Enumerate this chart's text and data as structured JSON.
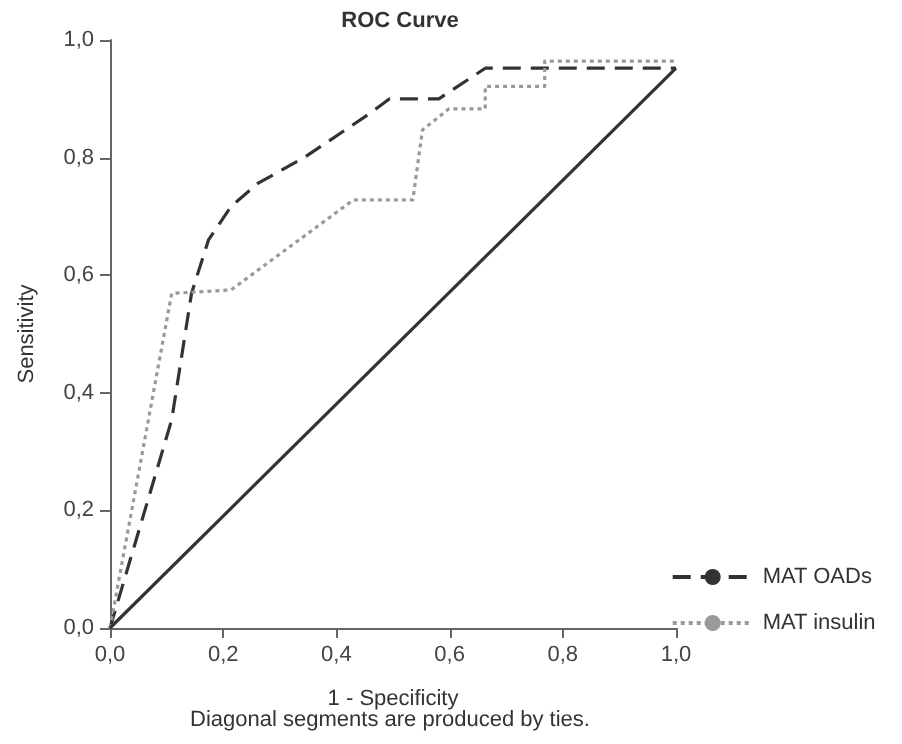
{
  "chart_data": {
    "type": "line",
    "title": "ROC Curve",
    "xlabel": "1 - Specificity",
    "ylabel": "Sensitivity",
    "annotations": [
      "Diagonal segments are produced by ties."
    ],
    "xlim": [
      0,
      1
    ],
    "ylim": [
      0,
      1
    ],
    "xticks": [
      {
        "value": 0,
        "label": "0,0"
      },
      {
        "value": 0.2,
        "label": "0,2"
      },
      {
        "value": 0.4,
        "label": "0,4"
      },
      {
        "value": 0.6,
        "label": "0,6"
      },
      {
        "value": 0.8,
        "label": "0,8"
      },
      {
        "value": 1,
        "label": "1,0"
      }
    ],
    "yticks": [
      {
        "value": 0,
        "label": "0,0"
      },
      {
        "value": 0.2,
        "label": "0,2"
      },
      {
        "value": 0.4,
        "label": "0,4"
      },
      {
        "value": 0.6,
        "label": "0,6"
      },
      {
        "value": 0.8,
        "label": "0,8"
      },
      {
        "value": 1,
        "label": "1,0"
      }
    ],
    "grid": false,
    "legend": "bottom right",
    "marker": "none",
    "series": [
      {
        "name": "MAT OADs",
        "color": "#333333",
        "line_style": "dashed",
        "x": [
          0,
          0.109,
          0.144,
          0.174,
          0.214,
          0.261,
          0.343,
          0.459,
          0.494,
          0.581,
          0.663,
          1
        ],
        "values": [
          0,
          0.354,
          0.569,
          0.66,
          0.717,
          0.756,
          0.8,
          0.875,
          0.9,
          0.9,
          0.952,
          0.952
        ]
      },
      {
        "name": "MAT insulin",
        "color": "#999999",
        "line_style": "dotted",
        "x": [
          0,
          0.109,
          0.214,
          0.43,
          0.535,
          0.552,
          0.599,
          0.663,
          0.663,
          0.768,
          0.768,
          1
        ],
        "values": [
          0,
          0.569,
          0.575,
          0.728,
          0.728,
          0.847,
          0.883,
          0.883,
          0.921,
          0.921,
          0.964,
          0.964
        ]
      },
      {
        "color": "#333333",
        "line_style": "solid",
        "x": [
          0,
          1
        ],
        "values": [
          0,
          0.952
        ]
      }
    ]
  }
}
